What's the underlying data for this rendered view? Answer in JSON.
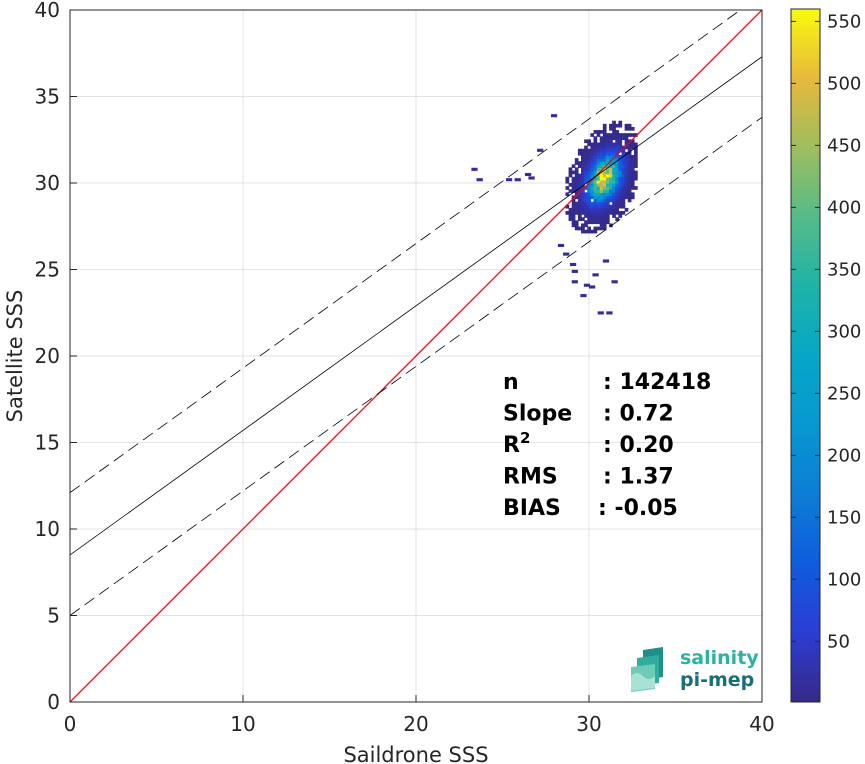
{
  "chart_data": {
    "type": "heatmap",
    "xlabel": "Saildrone SSS",
    "ylabel": "Satellite SSS",
    "xlim": [
      0,
      40
    ],
    "ylim": [
      0,
      40
    ],
    "xticks": [
      0,
      10,
      20,
      30,
      40
    ],
    "yticks": [
      0,
      5,
      10,
      15,
      20,
      25,
      30,
      35,
      40
    ],
    "grid": true,
    "colormap": "parula",
    "colorbar": {
      "range": [
        1,
        560
      ],
      "ticks": [
        50,
        100,
        150,
        200,
        250,
        300,
        350,
        400,
        450,
        500,
        550
      ]
    },
    "density_cluster": {
      "x_center": 30.8,
      "y_center": 30.4,
      "x_range": [
        23,
        32.5
      ],
      "y_range": [
        22.4,
        35.2
      ],
      "peak_count": 560
    },
    "identity_line": {
      "color": "#ff0000",
      "slope": 1,
      "intercept": 0
    },
    "regression_line": {
      "color": "#000000",
      "slope": 0.72,
      "intercept": 8.5
    },
    "bound_lines": [
      {
        "style": "dashed",
        "slope": 0.72,
        "intercept": 12.1
      },
      {
        "style": "dashed",
        "slope": 0.72,
        "intercept": 5.0
      }
    ],
    "stats": [
      {
        "label": "n",
        "value": ": 142418"
      },
      {
        "label": "Slope",
        "value": ": 0.72"
      },
      {
        "label": "R",
        "sup": "2",
        "value": ": 0.20"
      },
      {
        "label": "RMS",
        "value": ": 1.37"
      },
      {
        "label": "BIAS",
        "value": ": -0.05"
      }
    ]
  },
  "logo": {
    "line1": "salinity",
    "line2": "pi-mep"
  }
}
